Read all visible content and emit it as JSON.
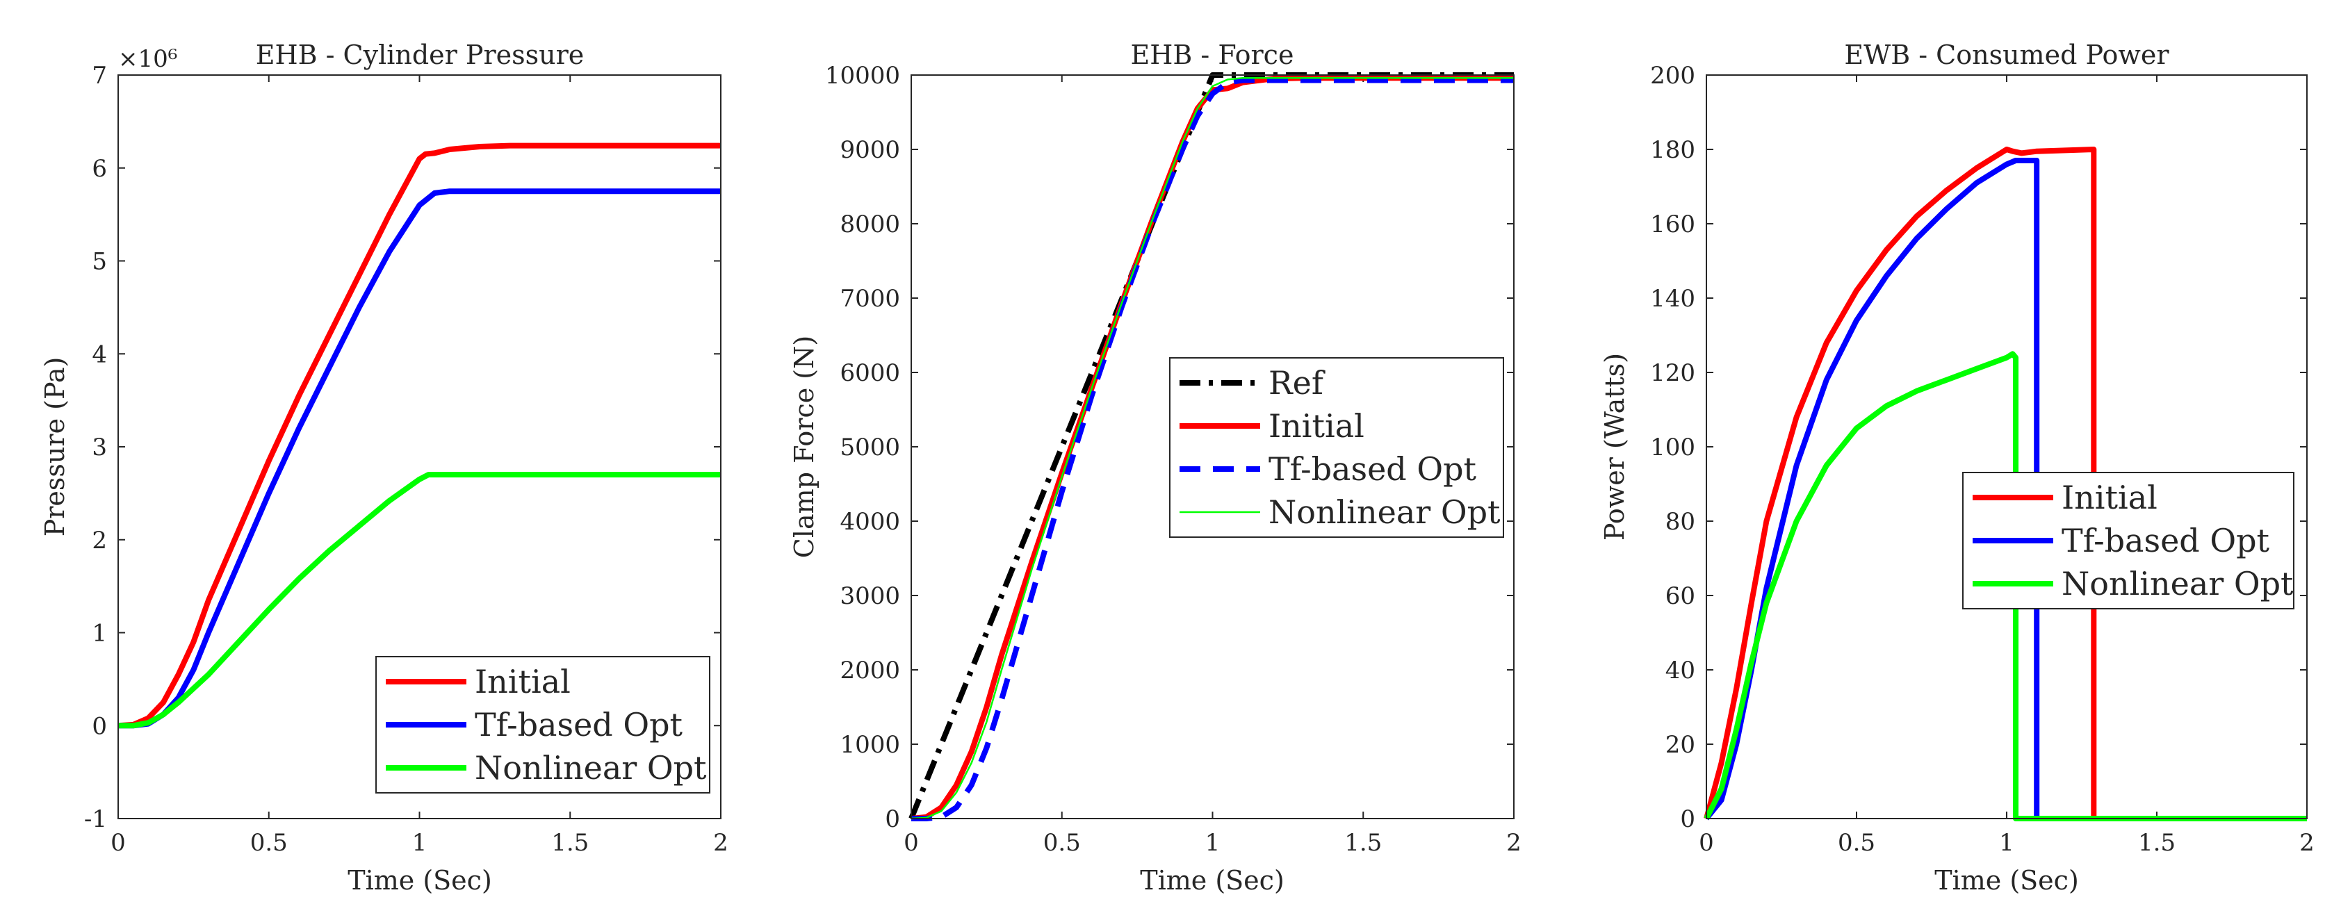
{
  "chart_data": [
    {
      "type": "line",
      "title": "EHB - Cylinder Pressure",
      "xlabel": "Time (Sec)",
      "ylabel": "Pressure (Pa)",
      "exponent_label": "×10⁶",
      "xlim": [
        0,
        2
      ],
      "ylim": [
        -1,
        7
      ],
      "xticks": [
        0,
        0.5,
        1,
        1.5,
        2
      ],
      "xtick_labels": [
        "0",
        "0.5",
        "1",
        "1.5",
        "2"
      ],
      "yticks": [
        -1,
        0,
        1,
        2,
        3,
        4,
        5,
        6,
        7
      ],
      "ytick_labels": [
        "-1",
        "0",
        "1",
        "2",
        "3",
        "4",
        "5",
        "6",
        "7"
      ],
      "legend_position": "lower-right",
      "series": [
        {
          "name": "Initial",
          "color": "#ff0000",
          "style": "solid",
          "x": [
            0,
            0.05,
            0.1,
            0.15,
            0.2,
            0.25,
            0.3,
            0.4,
            0.5,
            0.6,
            0.7,
            0.8,
            0.9,
            1.0,
            1.02,
            1.05,
            1.1,
            1.2,
            1.3,
            1.5,
            2.0
          ],
          "y": [
            0,
            0.01,
            0.08,
            0.25,
            0.55,
            0.9,
            1.35,
            2.1,
            2.85,
            3.55,
            4.2,
            4.85,
            5.5,
            6.1,
            6.15,
            6.16,
            6.2,
            6.23,
            6.24,
            6.24,
            6.24
          ]
        },
        {
          "name": "Tf-based Opt",
          "color": "#0000ff",
          "style": "solid",
          "x": [
            0,
            0.05,
            0.1,
            0.15,
            0.2,
            0.25,
            0.3,
            0.4,
            0.5,
            0.6,
            0.7,
            0.8,
            0.9,
            1.0,
            1.05,
            1.1,
            1.2,
            1.5,
            2.0
          ],
          "y": [
            0,
            0.0,
            0.02,
            0.12,
            0.3,
            0.6,
            1.0,
            1.75,
            2.5,
            3.2,
            3.85,
            4.5,
            5.1,
            5.6,
            5.73,
            5.75,
            5.75,
            5.75,
            5.75
          ]
        },
        {
          "name": "Nonlinear Opt",
          "color": "#00ff00",
          "style": "solid",
          "x": [
            0,
            0.05,
            0.1,
            0.15,
            0.2,
            0.3,
            0.4,
            0.5,
            0.6,
            0.7,
            0.8,
            0.9,
            1.0,
            1.03,
            1.1,
            1.5,
            2.0
          ],
          "y": [
            0,
            0.0,
            0.03,
            0.12,
            0.25,
            0.55,
            0.9,
            1.25,
            1.58,
            1.88,
            2.15,
            2.42,
            2.65,
            2.7,
            2.7,
            2.7,
            2.7
          ]
        }
      ]
    },
    {
      "type": "line",
      "title": "EHB - Force",
      "xlabel": "Time (Sec)",
      "ylabel": "Clamp Force (N)",
      "xlim": [
        0,
        2
      ],
      "ylim": [
        0,
        10000
      ],
      "xticks": [
        0,
        0.5,
        1,
        1.5,
        2
      ],
      "xtick_labels": [
        "0",
        "0.5",
        "1",
        "1.5",
        "2"
      ],
      "yticks": [
        0,
        1000,
        2000,
        3000,
        4000,
        5000,
        6000,
        7000,
        8000,
        9000,
        10000
      ],
      "ytick_labels": [
        "0",
        "1000",
        "2000",
        "3000",
        "4000",
        "5000",
        "6000",
        "7000",
        "8000",
        "9000",
        "10000"
      ],
      "legend_position": "center-right",
      "series": [
        {
          "name": "Ref",
          "color": "#000000",
          "style": "dashdot",
          "x": [
            0,
            1.0,
            2.0
          ],
          "y": [
            0,
            10000,
            10000
          ]
        },
        {
          "name": "Initial",
          "color": "#ff0000",
          "style": "solid",
          "x": [
            0,
            0.05,
            0.1,
            0.15,
            0.2,
            0.25,
            0.3,
            0.4,
            0.5,
            0.6,
            0.7,
            0.8,
            0.9,
            0.95,
            1.0,
            1.05,
            1.1,
            1.2,
            1.3,
            2.0
          ],
          "y": [
            0,
            20,
            150,
            450,
            900,
            1500,
            2200,
            3450,
            4650,
            5800,
            6950,
            8050,
            9100,
            9550,
            9800,
            9820,
            9900,
            9950,
            9960,
            9960
          ]
        },
        {
          "name": "Tf-based Opt",
          "color": "#0000ff",
          "style": "dashed",
          "x": [
            0,
            0.05,
            0.1,
            0.15,
            0.2,
            0.25,
            0.3,
            0.4,
            0.5,
            0.6,
            0.7,
            0.8,
            0.9,
            0.95,
            1.0,
            1.05,
            1.1,
            1.2,
            2.0
          ],
          "y": [
            0,
            0,
            20,
            150,
            450,
            950,
            1600,
            3000,
            4400,
            5700,
            6900,
            8000,
            9000,
            9450,
            9750,
            9900,
            9930,
            9930,
            9930
          ]
        },
        {
          "name": "Nonlinear Opt",
          "color": "#00ff00",
          "style": "thin",
          "x": [
            0,
            0.05,
            0.1,
            0.15,
            0.2,
            0.25,
            0.3,
            0.4,
            0.5,
            0.6,
            0.7,
            0.8,
            0.9,
            0.95,
            1.0,
            1.05,
            1.1,
            1.2,
            2.0
          ],
          "y": [
            0,
            10,
            100,
            350,
            750,
            1300,
            2000,
            3350,
            4600,
            5800,
            6950,
            8050,
            9100,
            9550,
            9850,
            9940,
            9960,
            9960,
            9960
          ]
        }
      ]
    },
    {
      "type": "line",
      "title": "EWB - Consumed Power",
      "xlabel": "Time (Sec)",
      "ylabel": "Power (Watts)",
      "xlim": [
        0,
        2
      ],
      "ylim": [
        0,
        200
      ],
      "xticks": [
        0,
        0.5,
        1,
        1.5,
        2
      ],
      "xtick_labels": [
        "0",
        "0.5",
        "1",
        "1.5",
        "2"
      ],
      "yticks": [
        0,
        20,
        40,
        60,
        80,
        100,
        120,
        140,
        160,
        180,
        200
      ],
      "ytick_labels": [
        "0",
        "20",
        "40",
        "60",
        "80",
        "100",
        "120",
        "140",
        "160",
        "180",
        "200"
      ],
      "legend_position": "center-right",
      "series": [
        {
          "name": "Initial",
          "color": "#ff0000",
          "style": "solid",
          "x": [
            0,
            0.05,
            0.1,
            0.15,
            0.2,
            0.3,
            0.4,
            0.5,
            0.6,
            0.7,
            0.8,
            0.9,
            1.0,
            1.02,
            1.05,
            1.1,
            1.29,
            1.29,
            2.0
          ],
          "y": [
            0,
            15,
            35,
            58,
            80,
            108,
            128,
            142,
            153,
            162,
            169,
            175,
            180,
            179.5,
            179,
            179.5,
            180,
            0,
            0
          ]
        },
        {
          "name": "Tf-based Opt",
          "color": "#0000ff",
          "style": "solid",
          "x": [
            0,
            0.05,
            0.1,
            0.15,
            0.2,
            0.3,
            0.4,
            0.5,
            0.6,
            0.7,
            0.8,
            0.9,
            1.0,
            1.03,
            1.1,
            1.1,
            2.0
          ],
          "y": [
            0,
            5,
            20,
            40,
            62,
            95,
            118,
            134,
            146,
            156,
            164,
            171,
            176,
            177,
            177,
            0,
            0
          ]
        },
        {
          "name": "Nonlinear Opt",
          "color": "#00ff00",
          "style": "solid",
          "x": [
            0,
            0.05,
            0.1,
            0.15,
            0.2,
            0.3,
            0.4,
            0.5,
            0.6,
            0.7,
            0.8,
            0.9,
            1.0,
            1.02,
            1.03,
            1.03,
            2.0
          ],
          "y": [
            0,
            8,
            24,
            42,
            58,
            80,
            95,
            105,
            111,
            115,
            118,
            121,
            124,
            125,
            124,
            0,
            0
          ]
        }
      ]
    }
  ]
}
